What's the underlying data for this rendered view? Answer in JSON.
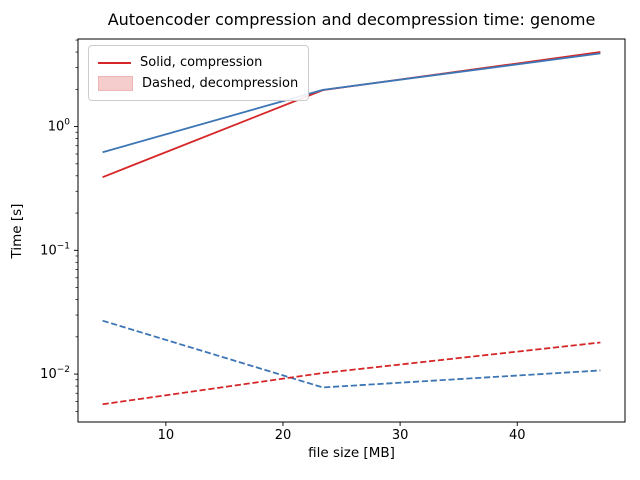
{
  "chart_data": {
    "type": "line",
    "title": "Autoencoder compression and decompression time: genome",
    "xlabel": "file size [MB]",
    "ylabel": "Time [s]",
    "xlim": [
      2.5,
      49.2
    ],
    "ylim": [
      0.0041,
      5.1
    ],
    "yscale": "log",
    "grid": false,
    "xticks": [
      10,
      20,
      30,
      40
    ],
    "ytick_exponents": [
      0,
      -1,
      -2
    ],
    "x": [
      4.6,
      23.4,
      47.1
    ],
    "series": [
      {
        "name": "red solid compression",
        "style": "solid",
        "color": "#d62728",
        "values": [
          0.39,
          1.97,
          4.0
        ]
      },
      {
        "name": "blue solid compression",
        "style": "solid",
        "color": "#3d76b5",
        "values": [
          0.62,
          1.98,
          3.9
        ]
      },
      {
        "name": "blue dashed decompression",
        "style": "dashed",
        "color": "#3d76b5",
        "values": [
          0.027,
          0.0078,
          0.0107
        ]
      },
      {
        "name": "red dashed decompression",
        "style": "dashed",
        "color": "#d62728",
        "values": [
          0.0057,
          0.0102,
          0.018
        ]
      }
    ],
    "legend": {
      "position": "upper left",
      "entries": [
        {
          "label": "Solid, compression",
          "swatch": "line",
          "color": "#d62728"
        },
        {
          "label": "Dashed, decompression",
          "swatch": "patch",
          "fill": "#f6cdcd",
          "edge": "#efb5b5"
        }
      ]
    },
    "colors": {
      "red": "#d62728",
      "blue": "#3d76b5",
      "spine": "#000000",
      "background": "#ffffff"
    }
  }
}
